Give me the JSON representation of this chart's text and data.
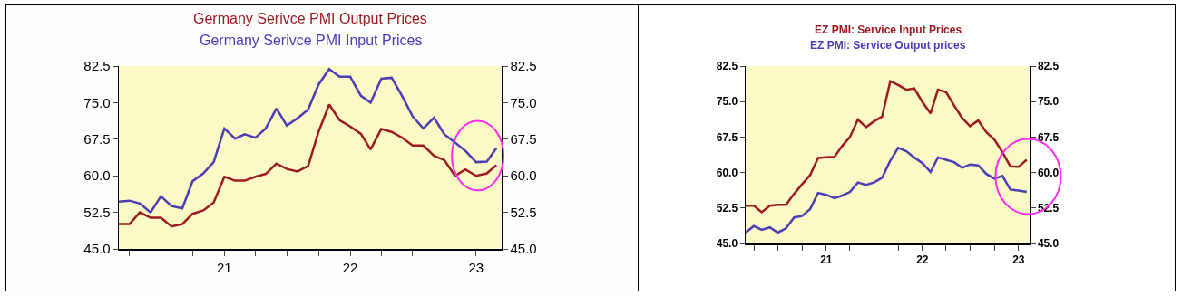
{
  "chart_data": [
    {
      "type": "line",
      "title": "Germany Serivce PMI Output Prices",
      "subtitle": "Germany Serivce PMI Input Prices",
      "x": [
        "2020-03",
        "2020-04",
        "2020-05",
        "2020-06",
        "2020-07",
        "2020-08",
        "2020-09",
        "2020-10",
        "2020-11",
        "2020-12",
        "2021-01",
        "2021-02",
        "2021-03",
        "2021-04",
        "2021-05",
        "2021-06",
        "2021-07",
        "2021-08",
        "2021-09",
        "2021-10",
        "2021-11",
        "2021-12",
        "2022-01",
        "2022-02",
        "2022-03",
        "2022-04",
        "2022-05",
        "2022-06",
        "2022-07",
        "2022-08",
        "2022-09",
        "2022-10",
        "2022-11",
        "2022-12",
        "2023-01",
        "2023-02",
        "2023-03"
      ],
      "series": [
        {
          "color": "#9b1b22",
          "values": [
            50.1,
            50.1,
            52.5,
            51.4,
            51.4,
            49.6,
            50.1,
            52.2,
            52.9,
            54.5,
            59.8,
            59.0,
            59.0,
            59.8,
            60.4,
            62.5,
            61.4,
            60.9,
            62.0,
            69.0,
            74.6,
            71.4,
            70.1,
            68.6,
            65.4,
            69.6,
            69.0,
            67.8,
            66.2,
            66.2,
            64.1,
            63.2,
            60.0,
            61.3,
            60.0,
            60.5,
            62.2
          ]
        },
        {
          "color": "#4a3db5",
          "values": [
            54.7,
            54.9,
            54.3,
            52.5,
            55.8,
            53.8,
            53.3,
            58.9,
            60.5,
            62.8,
            69.7,
            67.6,
            68.5,
            67.8,
            69.7,
            73.8,
            70.3,
            71.8,
            73.6,
            78.7,
            81.9,
            80.3,
            80.3,
            76.4,
            75.0,
            79.9,
            80.1,
            76.3,
            72.2,
            69.7,
            71.9,
            68.5,
            66.8,
            65.1,
            62.8,
            62.9,
            65.7
          ]
        }
      ],
      "xlim": [
        "2020-03-01",
        "2023-03-16"
      ],
      "xticks": [
        {
          "value": "2020-04-01",
          "label": null
        },
        {
          "value": "2020-07-01",
          "label": null
        },
        {
          "value": "2020-10-01",
          "label": null
        },
        {
          "value": "2021-01-01",
          "label": "21"
        },
        {
          "value": "2021-04-01",
          "label": null
        },
        {
          "value": "2021-07-01",
          "label": null
        },
        {
          "value": "2021-10-01",
          "label": null
        },
        {
          "value": "2022-01-01",
          "label": "22"
        },
        {
          "value": "2022-04-01",
          "label": null
        },
        {
          "value": "2022-07-01",
          "label": null
        },
        {
          "value": "2022-10-01",
          "label": null
        },
        {
          "value": "2023-01-01",
          "label": "23"
        }
      ],
      "ylim": [
        45,
        82.5
      ],
      "yticks": [
        {
          "value": 45,
          "label": "45.0"
        },
        {
          "value": 52.5,
          "label": "52.5"
        },
        {
          "value": 60,
          "label": "60.0"
        },
        {
          "value": 67.5,
          "label": "67.5"
        },
        {
          "value": 75,
          "label": "75.0"
        },
        {
          "value": 82.5,
          "label": "82.5"
        }
      ],
      "y2lim": [
        45,
        82.5
      ],
      "y2ticks": [
        {
          "value": 45,
          "label": "45.0"
        },
        {
          "value": 52.5,
          "label": "52.5"
        },
        {
          "value": 60,
          "label": "60.0"
        },
        {
          "value": 67.5,
          "label": "67.5"
        },
        {
          "value": 75,
          "label": "75.0"
        },
        {
          "value": 82.5,
          "label": "82.5"
        }
      ],
      "grid": false
    },
    {
      "type": "line",
      "title": "EZ PMI: Service Input Prices",
      "subtitle": "EZ PMI: Service Output prices",
      "x": [
        "2020-03",
        "2020-04",
        "2020-05",
        "2020-06",
        "2020-07",
        "2020-08",
        "2020-09",
        "2020-10",
        "2020-11",
        "2020-12",
        "2021-01",
        "2021-02",
        "2021-03",
        "2021-04",
        "2021-05",
        "2021-06",
        "2021-07",
        "2021-08",
        "2021-09",
        "2021-10",
        "2021-11",
        "2021-12",
        "2022-01",
        "2022-02",
        "2022-03",
        "2022-04",
        "2022-05",
        "2022-06",
        "2022-07",
        "2022-08",
        "2022-09",
        "2022-10",
        "2022-11",
        "2022-12",
        "2023-01",
        "2023-02"
      ],
      "series": [
        {
          "color": "#9b1b22",
          "values": [
            53.0,
            53.0,
            51.6,
            53.0,
            53.2,
            53.2,
            55.5,
            57.5,
            59.5,
            63.1,
            63.2,
            63.3,
            65.5,
            67.5,
            71.2,
            69.6,
            70.8,
            71.8,
            79.3,
            78.5,
            77.5,
            77.8,
            74.9,
            72.5,
            77.5,
            77.0,
            74.2,
            71.5,
            69.8,
            71.0,
            68.5,
            67.0,
            64.3,
            61.3,
            61.2,
            62.7
          ]
        },
        {
          "color": "#4a3db5",
          "values": [
            47.3,
            48.7,
            47.9,
            48.4,
            47.3,
            48.2,
            50.5,
            50.8,
            52.3,
            55.7,
            55.3,
            54.6,
            55.1,
            55.9,
            57.9,
            57.4,
            57.9,
            58.9,
            62.5,
            65.2,
            64.5,
            63.2,
            62.0,
            60.1,
            63.2,
            62.7,
            62.2,
            61.0,
            61.7,
            61.5,
            59.7,
            58.7,
            59.3,
            56.4,
            56.2,
            55.9
          ]
        }
      ],
      "xlim": [
        "2020-03-01",
        "2023-02-12"
      ],
      "xticks": [
        {
          "value": "2020-04-01",
          "label": null
        },
        {
          "value": "2020-07-01",
          "label": null
        },
        {
          "value": "2020-10-01",
          "label": null
        },
        {
          "value": "2021-01-01",
          "label": "21"
        },
        {
          "value": "2021-04-01",
          "label": null
        },
        {
          "value": "2021-07-01",
          "label": null
        },
        {
          "value": "2021-10-01",
          "label": null
        },
        {
          "value": "2022-01-01",
          "label": "22"
        },
        {
          "value": "2022-04-01",
          "label": null
        },
        {
          "value": "2022-07-01",
          "label": null
        },
        {
          "value": "2022-10-01",
          "label": null
        },
        {
          "value": "2023-01-01",
          "label": "23"
        }
      ],
      "ylim": [
        45,
        82.5
      ],
      "yticks": [
        {
          "value": 45,
          "label": "45.0"
        },
        {
          "value": 52.5,
          "label": "52.5"
        },
        {
          "value": 60,
          "label": "60.0"
        },
        {
          "value": 67.5,
          "label": "67.5"
        },
        {
          "value": 75,
          "label": "75.0"
        },
        {
          "value": 82.5,
          "label": "82.5"
        }
      ],
      "y2lim": [
        45,
        82.5
      ],
      "y2ticks": [
        {
          "value": 45,
          "label": "45.0"
        },
        {
          "value": 52.5,
          "label": "52.5"
        },
        {
          "value": 60,
          "label": "60.0"
        },
        {
          "value": 67.5,
          "label": "67.5"
        },
        {
          "value": 75,
          "label": "75.0"
        },
        {
          "value": 82.5,
          "label": "82.5"
        }
      ],
      "grid": false
    }
  ]
}
